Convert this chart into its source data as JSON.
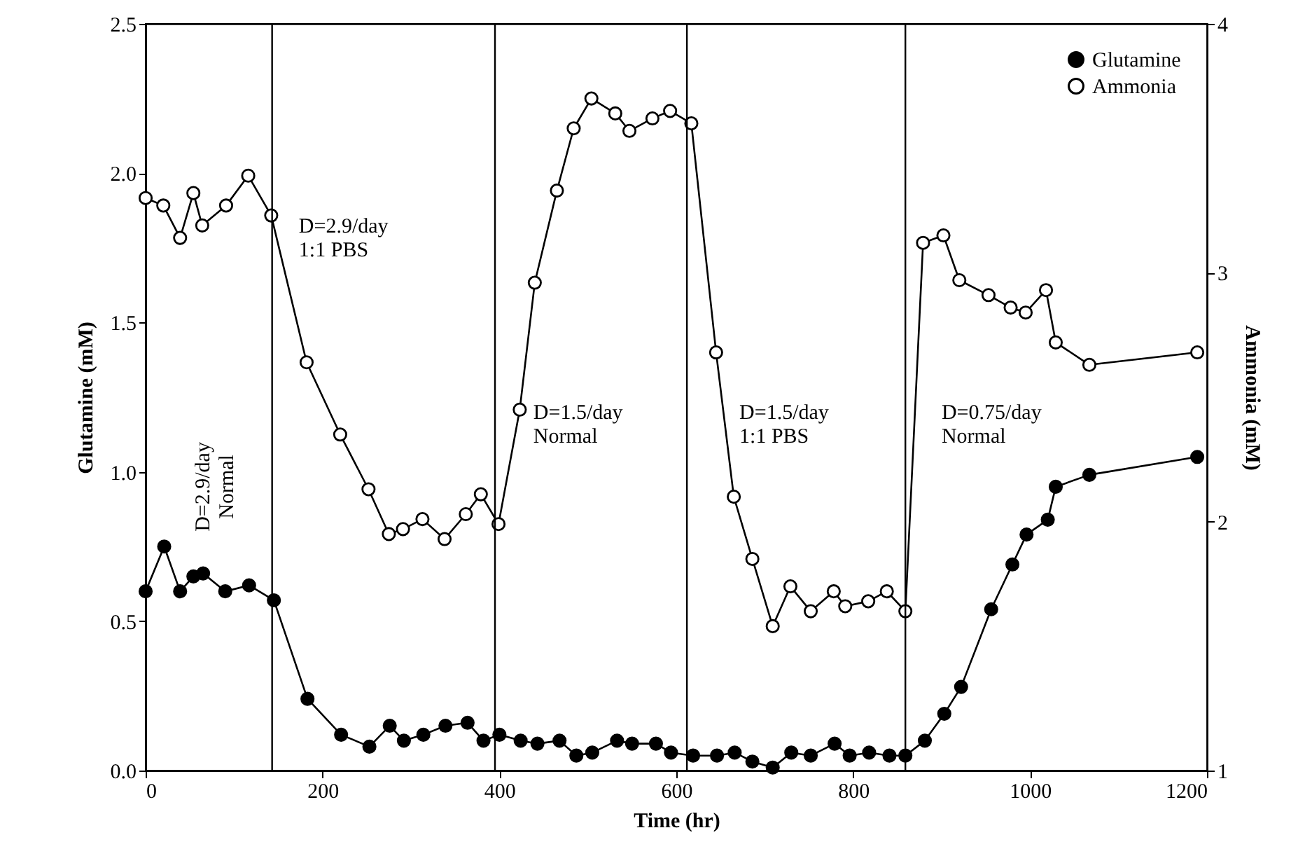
{
  "chart_data": {
    "type": "line",
    "xlabel": "Time (hr)",
    "ylabel": "Glutamine (mM)",
    "y2label": "Ammonia (mM)",
    "xlim": [
      0,
      1200
    ],
    "xticks": [
      0,
      200,
      400,
      600,
      800,
      1000,
      1200
    ],
    "ylim": [
      0,
      2.5
    ],
    "yticks": [
      {
        "value": 0,
        "label": "0.0"
      },
      0.5,
      {
        "value": 1,
        "label": "1.0"
      },
      1.5,
      {
        "value": 2,
        "label": "2.0"
      },
      2.5
    ],
    "y2lim": [
      1,
      4
    ],
    "y2ticks": [
      1,
      2,
      3,
      4
    ],
    "marker": "circle",
    "legend": "top right",
    "grid": false,
    "ref_lines": [
      {
        "axis": "x",
        "value": 143
      },
      {
        "axis": "x",
        "value": 395
      },
      {
        "axis": "x",
        "value": 612
      },
      {
        "axis": "x",
        "value": 859
      }
    ],
    "annotations": [
      "D=2.9/day\nNormal",
      "D=2.9/day\n1:1 PBS",
      "D=1.5/day\nNormal",
      "D=1.5/day\n1:1 PBS",
      "D=0.75/day\nNormal"
    ],
    "series": [
      {
        "name": "Glutamine",
        "color": "#000000",
        "x": [
          0,
          21,
          39,
          54,
          65,
          90,
          117,
          145,
          183,
          221,
          253,
          276,
          292,
          314,
          339,
          364,
          382,
          400,
          424,
          443,
          468,
          487,
          505,
          533,
          550,
          577,
          594,
          619,
          646,
          666,
          686,
          709,
          730,
          752,
          779,
          796,
          818,
          841,
          859,
          881,
          903,
          922,
          956,
          980,
          996,
          1020,
          1029,
          1067,
          1189
        ],
        "values": [
          0.6,
          0.75,
          0.6,
          0.65,
          0.66,
          0.6,
          0.62,
          0.57,
          0.24,
          0.12,
          0.08,
          0.15,
          0.1,
          0.12,
          0.15,
          0.16,
          0.1,
          0.12,
          0.1,
          0.09,
          0.1,
          0.05,
          0.06,
          0.1,
          0.09,
          0.09,
          0.06,
          0.05,
          0.05,
          0.06,
          0.03,
          0.01,
          0.06,
          0.05,
          0.09,
          0.05,
          0.06,
          0.05,
          0.05,
          0.1,
          0.19,
          0.28,
          0.54,
          0.69,
          0.79,
          0.84,
          0.95,
          0.99,
          1.05
        ]
      },
      {
        "name": "Ammonia",
        "color": "#000000",
        "axis": "y2",
        "x": [
          0,
          20,
          39,
          54,
          64,
          91,
          116,
          142,
          182,
          220,
          252,
          275,
          291,
          313,
          338,
          362,
          379,
          399,
          423,
          440,
          465,
          484,
          504,
          531,
          547,
          573,
          593,
          617,
          645,
          665,
          686,
          709,
          729,
          752,
          778,
          791,
          817,
          838,
          859,
          879,
          902,
          920,
          953,
          978,
          995,
          1018,
          1029,
          1067,
          1189
        ],
        "values": [
          3.3,
          3.27,
          3.14,
          3.32,
          3.19,
          3.27,
          3.39,
          3.23,
          2.64,
          2.35,
          2.13,
          1.95,
          1.97,
          2.01,
          1.93,
          2.03,
          2.11,
          1.99,
          2.45,
          2.96,
          3.33,
          3.58,
          3.7,
          3.64,
          3.57,
          3.62,
          3.65,
          3.6,
          2.68,
          2.1,
          1.85,
          1.58,
          1.74,
          1.64,
          1.72,
          1.66,
          1.68,
          1.72,
          1.64,
          3.12,
          3.15,
          2.97,
          2.91,
          2.86,
          2.84,
          2.93,
          2.72,
          2.63,
          2.68
        ]
      }
    ]
  }
}
